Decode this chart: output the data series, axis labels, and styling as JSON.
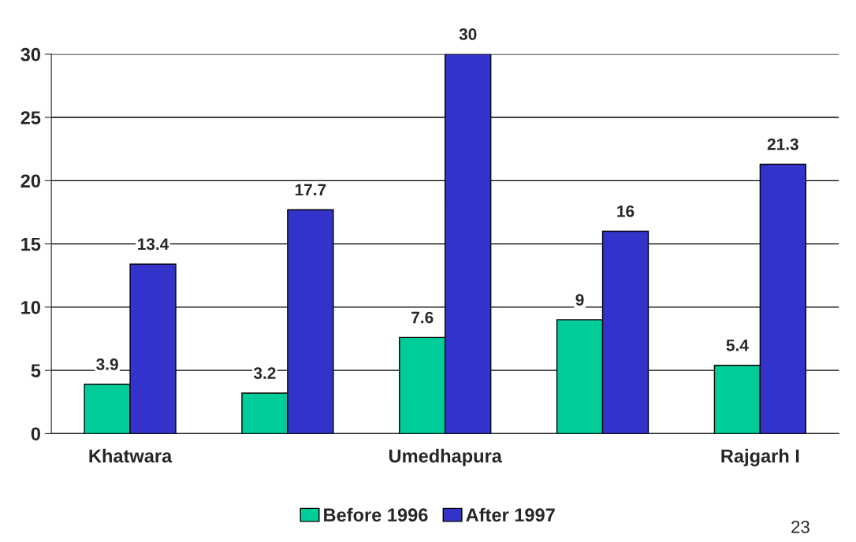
{
  "chart_data": {
    "type": "bar",
    "categories": [
      "Khatwara",
      null,
      "Umedhapura",
      null,
      "Rajgarh I"
    ],
    "series": [
      {
        "name": "Before 1996",
        "color": "#00cc99",
        "values": [
          3.9,
          3.2,
          7.6,
          9,
          5.4
        ]
      },
      {
        "name": "After 1997",
        "color": "#3333cc",
        "values": [
          13.4,
          17.7,
          30,
          16,
          21.3
        ]
      }
    ],
    "ylim": [
      0,
      30
    ],
    "yticks": [
      0,
      5,
      10,
      15,
      20,
      25,
      30
    ],
    "grid": "y",
    "legend": "bottom",
    "data_labels": true,
    "annotations": [
      "23"
    ]
  }
}
